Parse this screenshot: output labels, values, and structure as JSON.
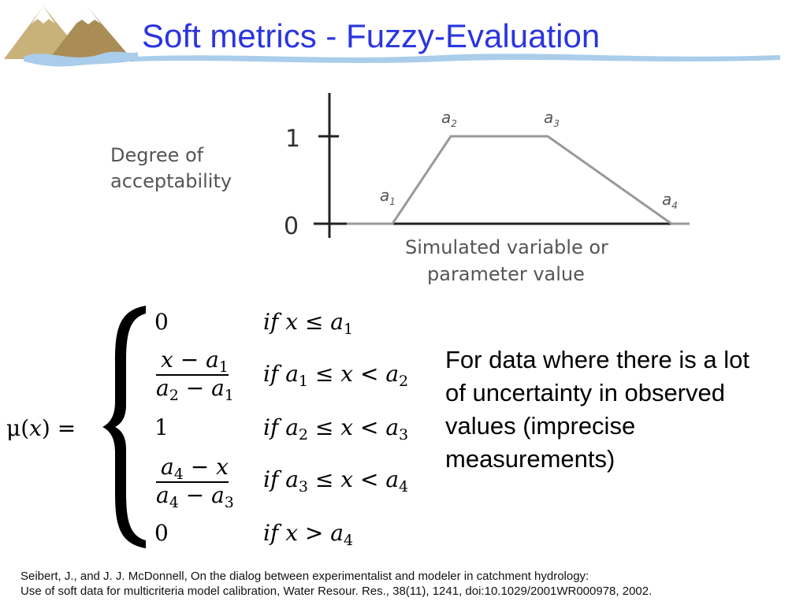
{
  "slide": {
    "title": "Soft metrics - Fuzzy-Evaluation",
    "colors": {
      "title": "#2a35e0",
      "river": "#a9cdea",
      "mountain_light": "#c9b27a",
      "mountain_dark": "#a98d55"
    },
    "logo_icon": "mountains-river-icon"
  },
  "diagram": {
    "y_axis_label_lines": [
      "Degree of",
      "acceptability"
    ],
    "x_axis_label_lines": [
      "Simulated variable or",
      "parameter value"
    ],
    "y_ticks": [
      "1",
      "0"
    ],
    "breakpoints": [
      {
        "label": "a",
        "index": "1"
      },
      {
        "label": "a",
        "index": "2"
      },
      {
        "label": "a",
        "index": "3"
      },
      {
        "label": "a",
        "index": "4"
      }
    ]
  },
  "formula": {
    "lhs": "μ(x) =",
    "cases": [
      {
        "value": "0",
        "condition": "if x ≤ a1"
      },
      {
        "value": "(x − a1)/(a2 − a1)",
        "condition": "if a1 ≤ x < a2"
      },
      {
        "value": "1",
        "condition": "if a2 ≤ x < a3"
      },
      {
        "value": "(a4 − x)/(a4 − a3)",
        "condition": "if a3 ≤ x < a4"
      },
      {
        "value": "0",
        "condition": "if x > a4"
      }
    ]
  },
  "note": {
    "lines": [
      "For data where there is a lot",
      "of uncertainty in observed",
      "values (imprecise",
      "measurements)"
    ]
  },
  "citation": {
    "lines": [
      "Seibert, J., and J. J. McDonnell, On the dialog between experimentalist and modeler in catchment hydrology:",
      "Use of soft data for multicriteria model calibration, Water Resour. Res., 38(11), 1241, doi:10.1029/2001WR000978, 2002."
    ]
  }
}
